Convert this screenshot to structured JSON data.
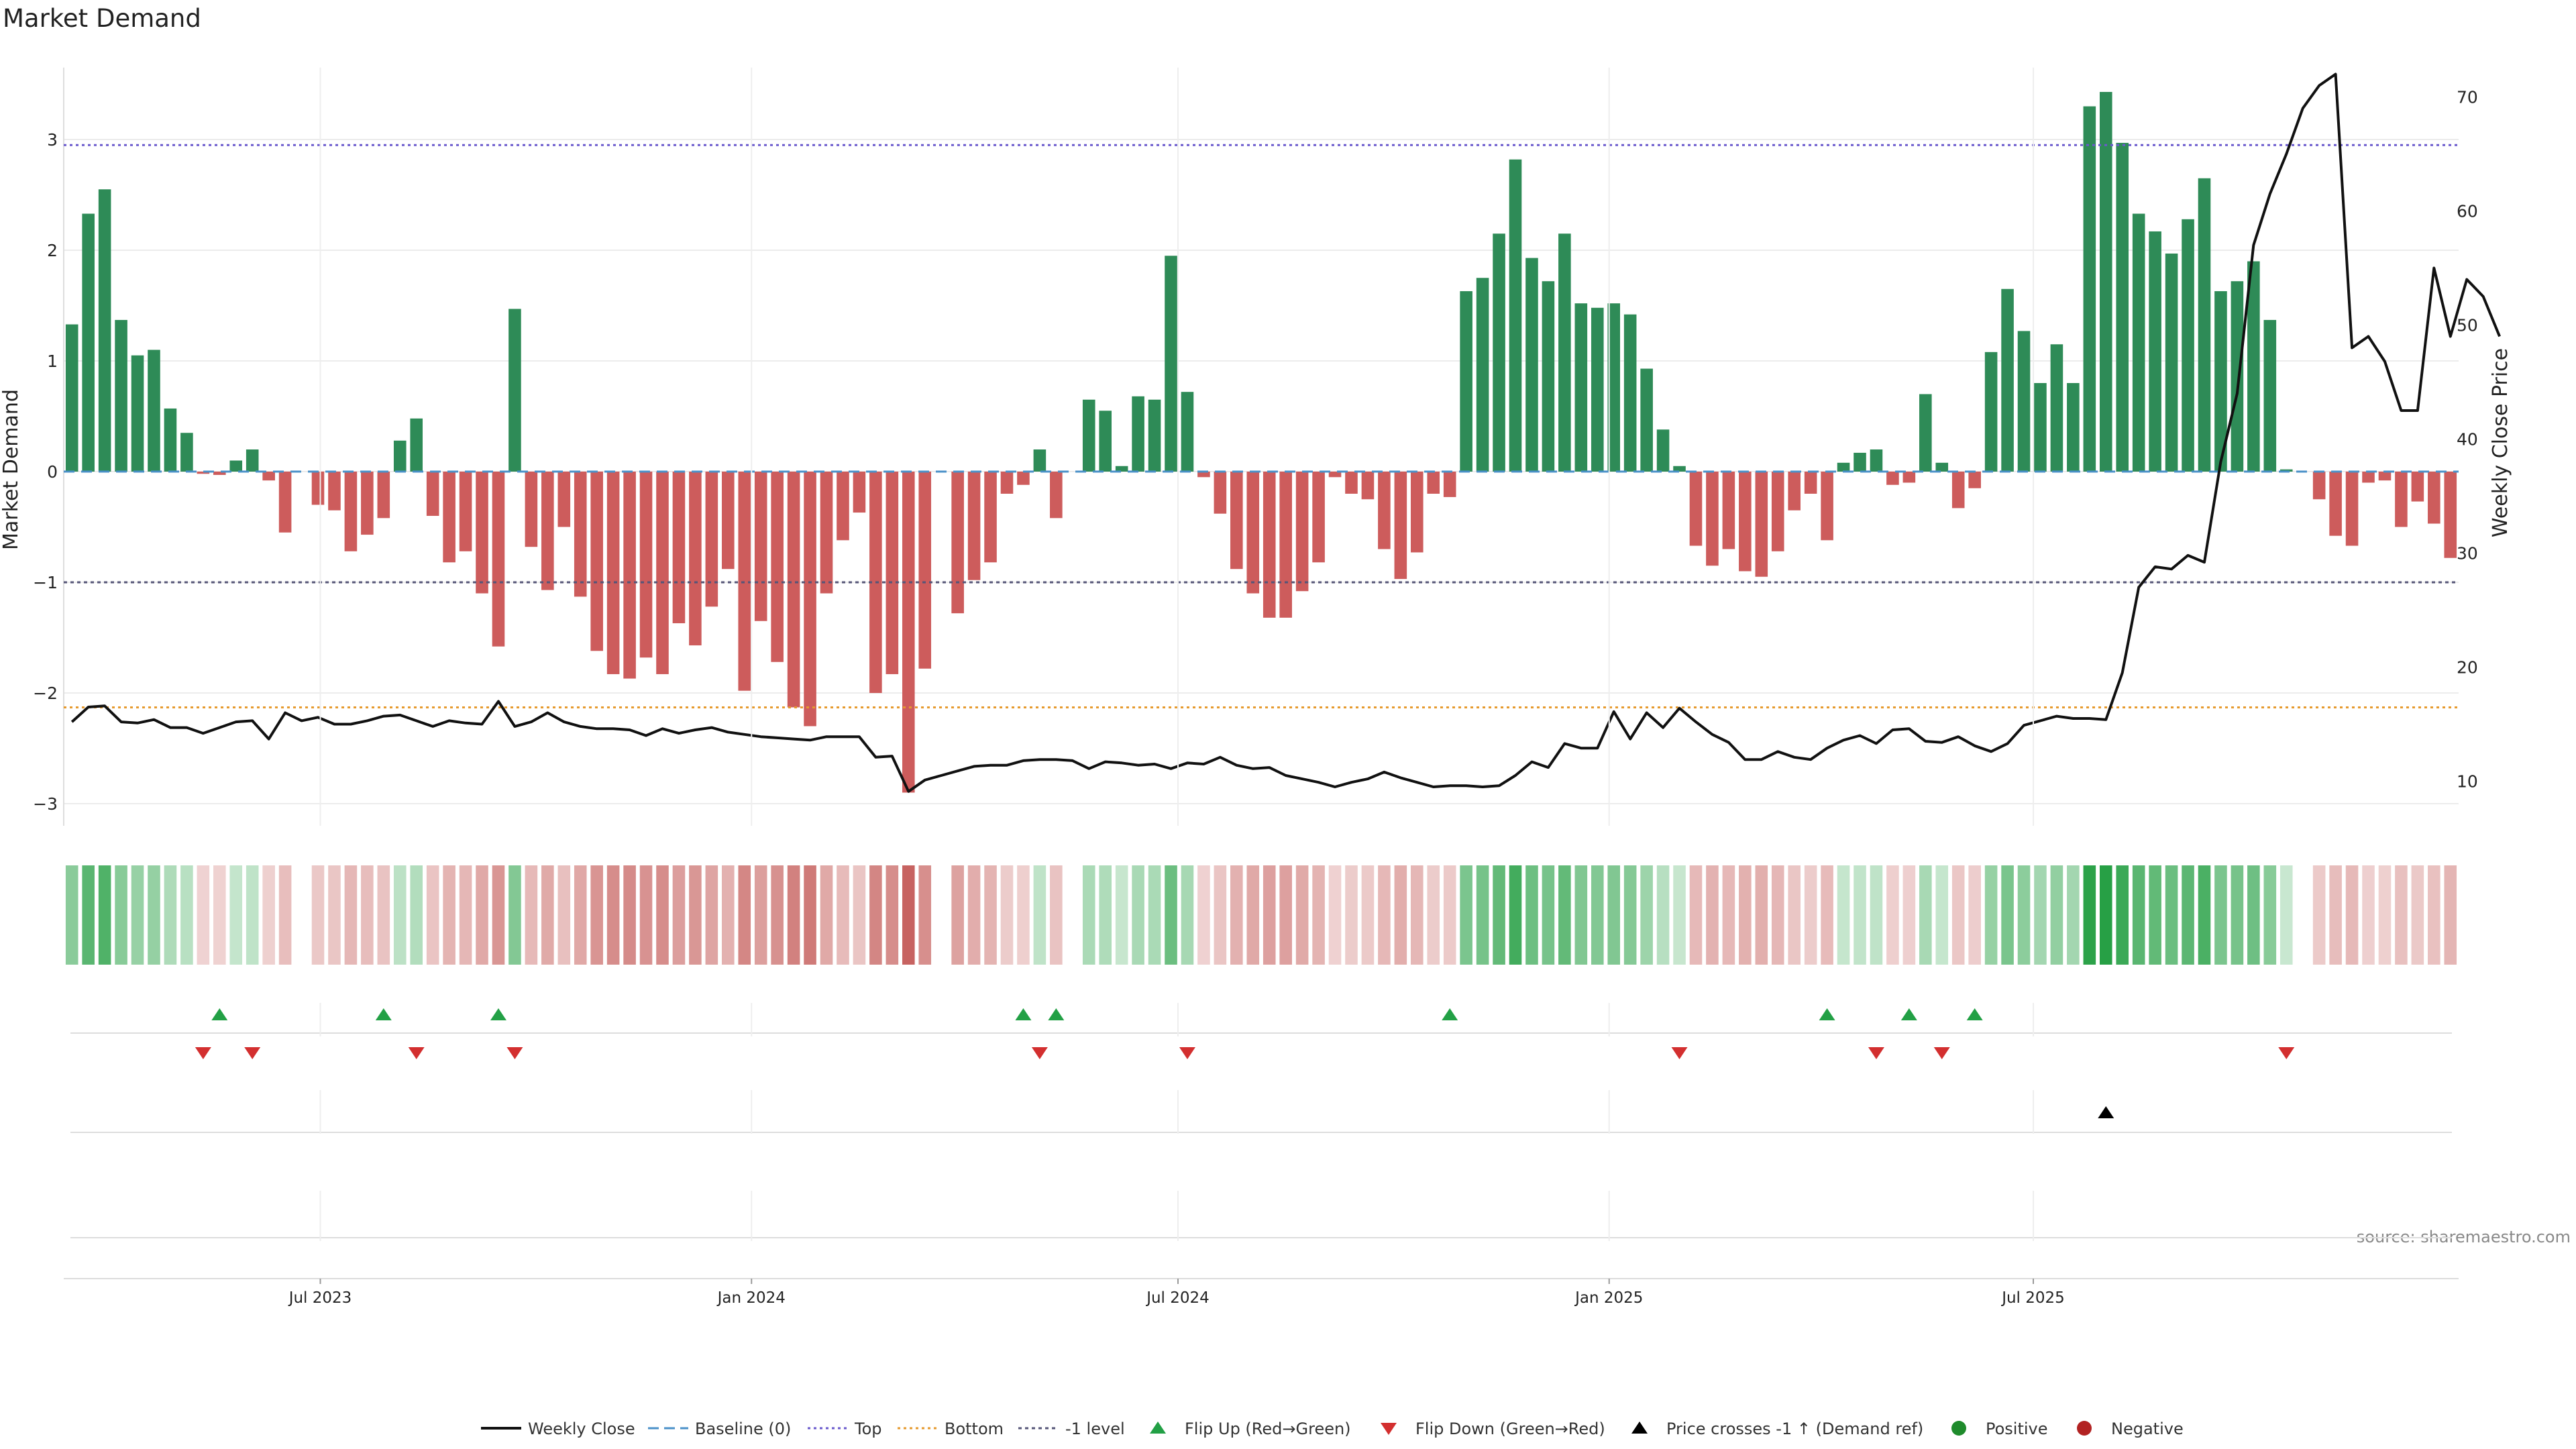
{
  "chart_data": {
    "type": "bar",
    "title": "Market Demand",
    "ylabel": "Market Demand",
    "y2label": "Weekly Close Price",
    "ylim": [
      -3.2,
      3.65
    ],
    "y2lim": [
      7,
      73
    ],
    "yticks": [
      -3,
      -2,
      -1,
      0,
      1,
      2,
      3
    ],
    "y2ticks": [
      10,
      20,
      30,
      40,
      50,
      60,
      70
    ],
    "x_start": "2023-03-17",
    "xticks": [
      {
        "date": "2023-07-01",
        "label": "Jul 2023"
      },
      {
        "date": "2024-01-01",
        "label": "Jan 2024"
      },
      {
        "date": "2024-07-01",
        "label": "Jul 2024"
      },
      {
        "date": "2025-01-01",
        "label": "Jan 2025"
      },
      {
        "date": "2025-07-01",
        "label": "Jul 2025"
      }
    ],
    "reference_lines": {
      "top": 2.95,
      "bottom": -2.13,
      "minus_one_level": -1.0,
      "baseline": 0
    },
    "demand": [
      1.33,
      2.33,
      2.55,
      1.37,
      1.05,
      1.1,
      0.57,
      0.35,
      -0.02,
      -0.03,
      0.1,
      0.2,
      -0.08,
      -0.55,
      0.0,
      -0.3,
      -0.35,
      -0.72,
      -0.57,
      -0.42,
      0.28,
      0.48,
      -0.4,
      -0.82,
      -0.72,
      -1.1,
      -1.58,
      1.47,
      -0.68,
      -1.07,
      -0.5,
      -1.13,
      -1.62,
      -1.83,
      -1.87,
      -1.68,
      -1.83,
      -1.37,
      -1.57,
      -1.22,
      -0.88,
      -1.98,
      -1.35,
      -1.72,
      -2.13,
      -2.3,
      -1.1,
      -0.62,
      -0.37,
      -2.0,
      -1.83,
      -2.9,
      -1.78,
      0.0,
      -1.28,
      -0.98,
      -0.82,
      -0.2,
      -0.12,
      0.2,
      -0.42,
      0.0,
      0.65,
      0.55,
      0.05,
      0.68,
      0.65,
      1.95,
      0.72,
      -0.05,
      -0.38,
      -0.88,
      -1.1,
      -1.32,
      -1.32,
      -1.08,
      -0.82,
      -0.05,
      -0.2,
      -0.25,
      -0.7,
      -0.97,
      -0.73,
      -0.2,
      -0.23,
      1.63,
      1.75,
      2.15,
      2.82,
      1.93,
      1.72,
      2.15,
      1.52,
      1.48,
      1.52,
      1.42,
      0.93,
      0.38,
      0.05,
      -0.67,
      -0.85,
      -0.7,
      -0.9,
      -0.95,
      -0.72,
      -0.35,
      -0.2,
      -0.62,
      0.08,
      0.17,
      0.2,
      -0.12,
      -0.1,
      0.7,
      0.08,
      -0.33,
      -0.15,
      1.08,
      1.65,
      1.27,
      0.8,
      1.15,
      0.8,
      3.3,
      3.43,
      2.97,
      2.33,
      2.17,
      1.97,
      2.28,
      2.65,
      1.63,
      1.72,
      1.9,
      1.37,
      0.02,
      0.0,
      -0.25,
      -0.58,
      -0.67,
      -0.1,
      -0.08,
      -0.5,
      -0.27,
      -0.47,
      -0.78
    ],
    "weekly_close": [
      15.2,
      16.5,
      16.6,
      15.2,
      15.1,
      15.4,
      14.7,
      14.7,
      14.2,
      14.7,
      15.2,
      15.3,
      13.7,
      16.0,
      15.3,
      15.6,
      15.0,
      15.0,
      15.3,
      15.7,
      15.8,
      15.3,
      14.8,
      15.3,
      15.1,
      15.0,
      17.0,
      14.8,
      15.2,
      16.0,
      15.2,
      14.8,
      14.6,
      14.6,
      14.5,
      14.0,
      14.6,
      14.2,
      14.5,
      14.7,
      14.3,
      14.1,
      13.9,
      13.8,
      13.7,
      13.6,
      13.9,
      13.9,
      13.9,
      12.1,
      12.2,
      9.1,
      10.1,
      10.5,
      10.9,
      11.3,
      11.4,
      11.4,
      11.8,
      11.9,
      11.9,
      11.8,
      11.1,
      11.7,
      11.6,
      11.4,
      11.5,
      11.1,
      11.6,
      11.5,
      12.1,
      11.4,
      11.1,
      11.2,
      10.5,
      10.2,
      9.9,
      9.5,
      9.9,
      10.2,
      10.8,
      10.3,
      9.9,
      9.5,
      9.6,
      9.6,
      9.5,
      9.6,
      10.5,
      11.7,
      11.2,
      13.3,
      12.9,
      12.9,
      16.1,
      13.7,
      16.0,
      14.7,
      16.4,
      15.2,
      14.1,
      13.4,
      11.9,
      11.9,
      12.6,
      12.1,
      11.9,
      12.9,
      13.6,
      14.0,
      13.3,
      14.5,
      14.6,
      13.5,
      13.4,
      13.9,
      13.1,
      12.6,
      13.3,
      14.9,
      15.3,
      15.7,
      15.5,
      15.5,
      15.4,
      19.5,
      27.0,
      28.8,
      28.6,
      29.8,
      29.2,
      38.0,
      44.0,
      57.0,
      61.5,
      65.0,
      69.0,
      71.0,
      72.0,
      48.0,
      49.0,
      46.8,
      42.5,
      42.5,
      55.0,
      49.0,
      54.0,
      52.5,
      49.0
    ],
    "flip_up_weeks": [
      9,
      19,
      26,
      58,
      60,
      84,
      107,
      112,
      116
    ],
    "flip_down_weeks": [
      8,
      11,
      21,
      27,
      59,
      68,
      98,
      110,
      114,
      135
    ],
    "price_cross_weeks": [
      124
    ],
    "legend": [
      "Weekly Close",
      "Baseline (0)",
      "Top",
      "Bottom",
      "-1 level",
      "Flip Up (Red→Green)",
      "Flip Down (Green→Red)",
      "Price crosses -1 ↑ (Demand ref)",
      "Positive",
      "Negative"
    ],
    "source": "source: sharemaestro.com",
    "colors": {
      "positive": "#2e8b57",
      "negative": "#cd5c5c",
      "close_line": "#111111",
      "top_line": "#6a5acd",
      "bottom_line": "#e69a2e",
      "minus_one_line": "#555577",
      "baseline": "#4a90c8",
      "flip_up": "#22a045",
      "flip_down": "#d32f2f",
      "price_cross": "#000000",
      "positive_dot": "#1f8b2c",
      "negative_dot": "#b22222"
    }
  }
}
